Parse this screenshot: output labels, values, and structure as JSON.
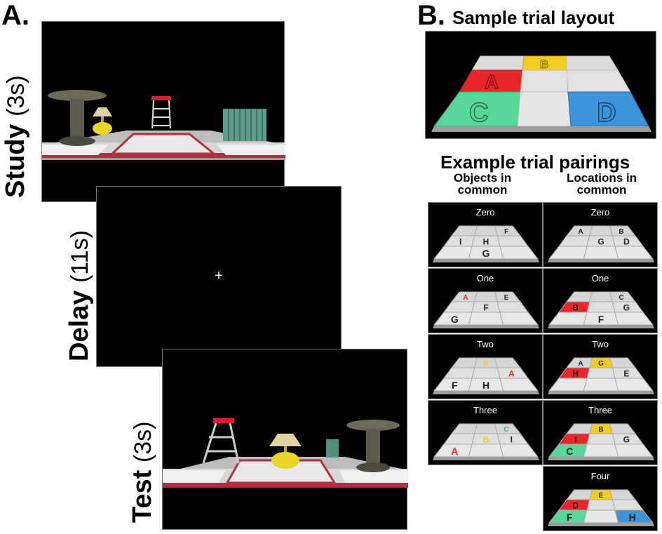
{
  "panelA": {
    "letter": "A.",
    "study": {
      "name": "Study",
      "duration": "(3s)"
    },
    "delay": {
      "name": "Delay",
      "duration": "(11s)",
      "fixation": "+"
    },
    "test": {
      "name": "Test",
      "duration": "(3s)"
    }
  },
  "panelB": {
    "letter": "B.",
    "sample_title": "Sample trial layout",
    "sample_tiles": [
      "A",
      "B",
      "C",
      "D"
    ],
    "pairings_title": "Example trial pairings",
    "col_objects": [
      "Objects in",
      "common"
    ],
    "col_locations": [
      "Locations in",
      "common"
    ],
    "objects_rows": [
      {
        "title": "Zero",
        "tiles": [
          {
            "pos": 3,
            "letter": "F",
            "color": "none"
          },
          {
            "pos": 4,
            "letter": "I",
            "color": "none"
          },
          {
            "pos": 5,
            "letter": "H",
            "color": "none"
          },
          {
            "pos": 8,
            "letter": "G",
            "color": "none"
          }
        ]
      },
      {
        "title": "One",
        "tiles": [
          {
            "pos": 1,
            "letter": "A",
            "color": "red-letter"
          },
          {
            "pos": 3,
            "letter": "E",
            "color": "none"
          },
          {
            "pos": 5,
            "letter": "F",
            "color": "none"
          },
          {
            "pos": 7,
            "letter": "G",
            "color": "none"
          }
        ]
      },
      {
        "title": "Two",
        "tiles": [
          {
            "pos": 2,
            "letter": "B",
            "color": "yellow-letter"
          },
          {
            "pos": 6,
            "letter": "A",
            "color": "red-letter"
          },
          {
            "pos": 7,
            "letter": "F",
            "color": "none"
          },
          {
            "pos": 8,
            "letter": "H",
            "color": "none"
          }
        ]
      },
      {
        "title": "Three",
        "tiles": [
          {
            "pos": 3,
            "letter": "C",
            "color": "green-letter"
          },
          {
            "pos": 5,
            "letter": "B",
            "color": "yellow-letter"
          },
          {
            "pos": 6,
            "letter": "I",
            "color": "none"
          },
          {
            "pos": 7,
            "letter": "A",
            "color": "red-letter"
          }
        ]
      }
    ],
    "locations_rows": [
      {
        "title": "Zero",
        "tiles": [
          {
            "pos": 1,
            "letter": "A",
            "color": "none"
          },
          {
            "pos": 3,
            "letter": "B",
            "color": "none"
          },
          {
            "pos": 5,
            "letter": "G",
            "color": "none"
          },
          {
            "pos": 6,
            "letter": "D",
            "color": "none"
          }
        ]
      },
      {
        "title": "One",
        "tiles": [
          {
            "pos": 3,
            "letter": "C",
            "color": "none"
          },
          {
            "pos": 4,
            "letter": "B",
            "color": "red-tile"
          },
          {
            "pos": 6,
            "letter": "G",
            "color": "none"
          },
          {
            "pos": 8,
            "letter": "F",
            "color": "none"
          }
        ]
      },
      {
        "title": "Two",
        "tiles": [
          {
            "pos": 1,
            "letter": "A",
            "color": "none"
          },
          {
            "pos": 2,
            "letter": "G",
            "color": "yellow-tile"
          },
          {
            "pos": 4,
            "letter": "H",
            "color": "red-tile"
          },
          {
            "pos": 6,
            "letter": "E",
            "color": "none"
          }
        ]
      },
      {
        "title": "Three",
        "tiles": [
          {
            "pos": 2,
            "letter": "B",
            "color": "yellow-tile"
          },
          {
            "pos": 4,
            "letter": "I",
            "color": "red-tile"
          },
          {
            "pos": 6,
            "letter": "G",
            "color": "none"
          },
          {
            "pos": 7,
            "letter": "C",
            "color": "green-tile"
          }
        ]
      },
      {
        "title": "Four",
        "tiles": [
          {
            "pos": 2,
            "letter": "E",
            "color": "yellow-tile"
          },
          {
            "pos": 4,
            "letter": "D",
            "color": "red-tile"
          },
          {
            "pos": 7,
            "letter": "F",
            "color": "green-tile"
          },
          {
            "pos": 9,
            "letter": "H",
            "color": "blue-tile"
          }
        ]
      }
    ]
  },
  "colors": {
    "red": "#e8262a",
    "yellow": "#f2cc1f",
    "green": "#55d89a",
    "blue": "#3b95d8"
  }
}
